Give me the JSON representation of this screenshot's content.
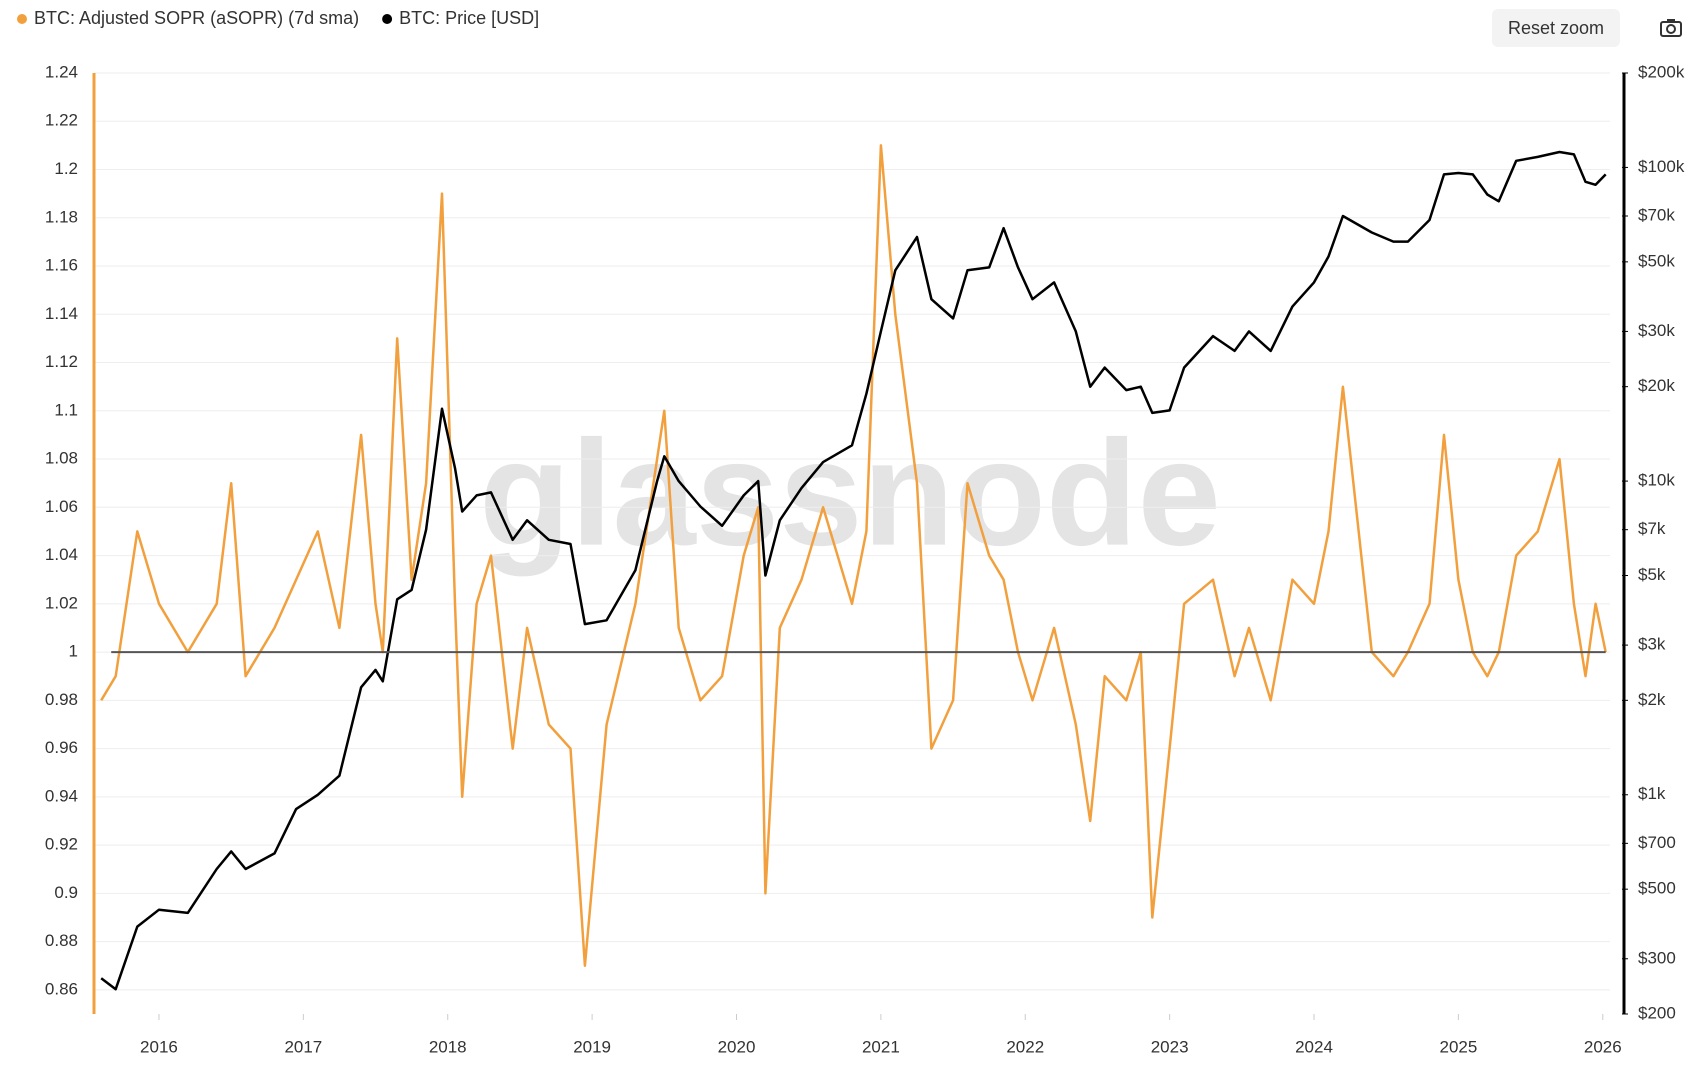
{
  "chart_data": {
    "type": "line",
    "watermark": "glassnode",
    "reset_button": "Reset zoom",
    "x": [
      2015.6,
      2015.7,
      2015.85,
      2016.0,
      2016.2,
      2016.4,
      2016.5,
      2016.6,
      2016.8,
      2016.95,
      2017.1,
      2017.25,
      2017.4,
      2017.5,
      2017.55,
      2017.65,
      2017.75,
      2017.85,
      2017.96,
      2018.05,
      2018.1,
      2018.2,
      2018.3,
      2018.45,
      2018.55,
      2018.7,
      2018.85,
      2018.95,
      2019.1,
      2019.3,
      2019.45,
      2019.5,
      2019.6,
      2019.75,
      2019.9,
      2020.05,
      2020.15,
      2020.2,
      2020.3,
      2020.45,
      2020.6,
      2020.8,
      2020.9,
      2021.0,
      2021.1,
      2021.25,
      2021.35,
      2021.5,
      2021.6,
      2021.75,
      2021.85,
      2021.95,
      2022.05,
      2022.2,
      2022.35,
      2022.45,
      2022.55,
      2022.7,
      2022.8,
      2022.88,
      2023.0,
      2023.1,
      2023.3,
      2023.45,
      2023.55,
      2023.7,
      2023.85,
      2024.0,
      2024.1,
      2024.2,
      2024.4,
      2024.55,
      2024.65,
      2024.8,
      2024.9,
      2025.0,
      2025.1,
      2025.2,
      2025.28,
      2025.4,
      2025.55,
      2025.7,
      2025.8,
      2025.88,
      2025.95,
      2026.02
    ],
    "series": [
      {
        "name": "BTC: Adjusted SOPR (aSOPR) (7d sma)",
        "color": "#f2a03d",
        "axis": "y",
        "values": [
          0.98,
          0.99,
          1.05,
          1.02,
          1.0,
          1.02,
          1.07,
          0.99,
          1.01,
          1.03,
          1.05,
          1.01,
          1.09,
          1.02,
          1.0,
          1.13,
          1.03,
          1.07,
          1.19,
          1.02,
          0.94,
          1.02,
          1.04,
          0.96,
          1.01,
          0.97,
          0.96,
          0.87,
          0.97,
          1.02,
          1.08,
          1.1,
          1.01,
          0.98,
          0.99,
          1.04,
          1.06,
          0.9,
          1.01,
          1.03,
          1.06,
          1.02,
          1.05,
          1.21,
          1.14,
          1.07,
          0.96,
          0.98,
          1.07,
          1.04,
          1.03,
          1.0,
          0.98,
          1.01,
          0.97,
          0.93,
          0.99,
          0.98,
          1.0,
          0.89,
          0.96,
          1.02,
          1.03,
          0.99,
          1.01,
          0.98,
          1.03,
          1.02,
          1.05,
          1.11,
          1.0,
          0.99,
          1.0,
          1.02,
          1.09,
          1.03,
          1.0,
          0.99,
          1.0,
          1.04,
          1.05,
          1.08,
          1.02,
          0.99,
          1.02,
          1.0
        ]
      },
      {
        "name": "BTC: Price [USD]",
        "color": "#000000",
        "axis": "y2",
        "values": [
          260,
          240,
          380,
          430,
          420,
          580,
          660,
          580,
          650,
          900,
          1000,
          1150,
          2200,
          2500,
          2300,
          4200,
          4500,
          7000,
          17000,
          11000,
          8000,
          9000,
          9200,
          6500,
          7500,
          6500,
          6300,
          3500,
          3600,
          5200,
          10000,
          12000,
          10000,
          8300,
          7200,
          9000,
          10000,
          5000,
          7500,
          9500,
          11500,
          13000,
          19000,
          30000,
          47000,
          60000,
          38000,
          33000,
          47000,
          48000,
          64000,
          48000,
          38000,
          43000,
          30000,
          20000,
          23000,
          19500,
          20000,
          16500,
          16800,
          23000,
          29000,
          26000,
          30000,
          26000,
          36000,
          43000,
          52000,
          70000,
          62000,
          58000,
          58000,
          68000,
          95000,
          96000,
          95000,
          82000,
          78000,
          105000,
          108000,
          112000,
          110000,
          90000,
          88000,
          95000
        ]
      }
    ],
    "reference_line": 1,
    "xlim": [
      2015.55,
      2026.05
    ],
    "xticks": [
      2016,
      2017,
      2018,
      2019,
      2020,
      2021,
      2022,
      2023,
      2024,
      2025,
      2026
    ],
    "ylim": [
      0.85,
      1.24
    ],
    "yticks": [
      0.86,
      0.88,
      0.9,
      0.92,
      0.94,
      0.96,
      0.98,
      1,
      1.02,
      1.04,
      1.06,
      1.08,
      1.1,
      1.12,
      1.14,
      1.16,
      1.18,
      1.2,
      1.22,
      1.24
    ],
    "y2lim": [
      200,
      200000
    ],
    "y2_log": true,
    "y2ticks": [
      {
        "value": 200,
        "label": "$200"
      },
      {
        "value": 300,
        "label": "$300"
      },
      {
        "value": 500,
        "label": "$500"
      },
      {
        "value": 700,
        "label": "$700"
      },
      {
        "value": 1000,
        "label": "$1k"
      },
      {
        "value": 2000,
        "label": "$2k"
      },
      {
        "value": 3000,
        "label": "$3k"
      },
      {
        "value": 5000,
        "label": "$5k"
      },
      {
        "value": 7000,
        "label": "$7k"
      },
      {
        "value": 10000,
        "label": "$10k"
      },
      {
        "value": 20000,
        "label": "$20k"
      },
      {
        "value": 30000,
        "label": "$30k"
      },
      {
        "value": 50000,
        "label": "$50k"
      },
      {
        "value": 70000,
        "label": "$70k"
      },
      {
        "value": 100000,
        "label": "$100k"
      },
      {
        "value": 200000,
        "label": "$200k"
      }
    ],
    "grid": true
  }
}
